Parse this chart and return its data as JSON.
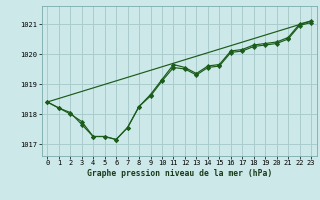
{
  "title": "Graphe pression niveau de la mer (hPa)",
  "bg_color": "#cce8e8",
  "grid_color": "#aacccc",
  "line_color": "#1a5c1a",
  "marker_color": "#1a5c1a",
  "xlim": [
    -0.5,
    23.5
  ],
  "ylim": [
    1016.6,
    1021.6
  ],
  "yticks": [
    1017,
    1018,
    1019,
    1020,
    1021
  ],
  "xticks": [
    0,
    1,
    2,
    3,
    4,
    5,
    6,
    7,
    8,
    9,
    10,
    11,
    12,
    13,
    14,
    15,
    16,
    17,
    18,
    19,
    20,
    21,
    22,
    23
  ],
  "series1_y": [
    1018.4,
    1018.2,
    1018.0,
    1017.75,
    1017.25,
    1017.25,
    1017.15,
    1017.55,
    1018.25,
    1018.65,
    1019.15,
    1019.65,
    1019.55,
    1019.35,
    1019.6,
    1019.65,
    1020.1,
    1020.15,
    1020.3,
    1020.35,
    1020.4,
    1020.55,
    1021.0,
    1021.1
  ],
  "series2_y": [
    1018.4,
    1018.2,
    1018.05,
    1017.65,
    1017.25,
    1017.25,
    1017.15,
    1017.55,
    1018.25,
    1018.6,
    1019.1,
    1019.55,
    1019.5,
    1019.3,
    1019.55,
    1019.6,
    1020.05,
    1020.1,
    1020.25,
    1020.3,
    1020.35,
    1020.5,
    1020.95,
    1021.05
  ],
  "trend_x": [
    0,
    23
  ],
  "trend_y": [
    1018.4,
    1021.1
  ],
  "ylabel_fontsize": 5.5,
  "tick_fontsize": 5,
  "xlabel_fontsize": 5.8
}
